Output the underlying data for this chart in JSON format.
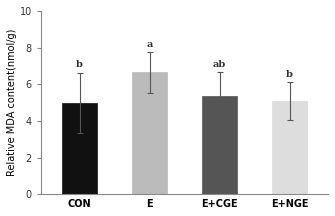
{
  "categories": [
    "CON",
    "E",
    "E+CGE",
    "E+NGE"
  ],
  "values": [
    4.98,
    6.65,
    5.38,
    5.08
  ],
  "errors": [
    1.65,
    1.12,
    1.28,
    1.05
  ],
  "bar_colors": [
    "#111111",
    "#bbbbbb",
    "#555555",
    "#dddddd"
  ],
  "bar_edgecolors": [
    "#111111",
    "#bbbbbb",
    "#555555",
    "#dddddd"
  ],
  "annotations": [
    "b",
    "a",
    "ab",
    "b"
  ],
  "ylabel": "Relative MDA content(nmol/g)",
  "ylim": [
    0,
    10
  ],
  "yticks": [
    0,
    2,
    4,
    6,
    8,
    10
  ],
  "bar_width": 0.5,
  "annotation_fontsize": 7,
  "label_fontsize": 7,
  "tick_fontsize": 7,
  "background_color": "#ffffff",
  "errorbar_color": "#555555"
}
